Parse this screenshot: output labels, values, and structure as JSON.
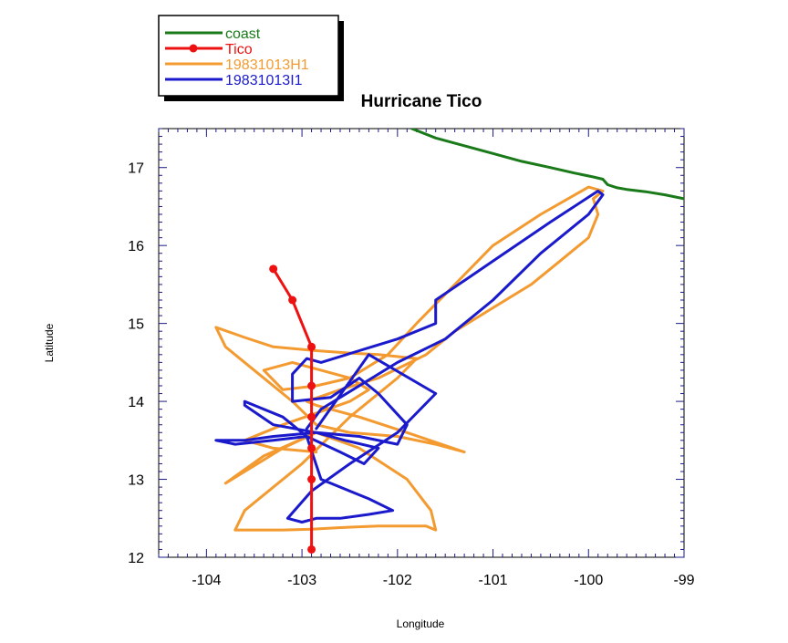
{
  "chart_data": {
    "type": "line",
    "title": "Hurricane Tico",
    "xlabel": "Longitude",
    "ylabel": "Latitude",
    "xlim": [
      -104.5,
      -99
    ],
    "ylim": [
      12,
      17.5
    ],
    "xticks": [
      -104,
      -103,
      -102,
      -101,
      -100,
      -99
    ],
    "yticks": [
      12,
      13,
      14,
      15,
      16,
      17
    ],
    "x_tick_labels": [
      "-104",
      "-103",
      "-102",
      "-101",
      "-100",
      "-99"
    ],
    "y_tick_labels": [
      "12",
      "13",
      "14",
      "15",
      "16",
      "17"
    ],
    "grid": false,
    "legend_position": "top-left, outside plot",
    "series": [
      {
        "name": "coast",
        "color": "#1a7a1a",
        "marker": "none",
        "x": [
          -101.85,
          -101.6,
          -101.3,
          -101.0,
          -100.7,
          -100.4,
          -100.15,
          -99.95,
          -99.85,
          -99.8,
          -99.7,
          -99.6,
          -99.4,
          -99.2,
          -99.0
        ],
        "y": [
          17.5,
          17.38,
          17.28,
          17.18,
          17.08,
          17.0,
          16.93,
          16.88,
          16.85,
          16.78,
          16.74,
          16.72,
          16.69,
          16.65,
          16.6
        ]
      },
      {
        "name": "Tico",
        "color": "#ee1111",
        "marker": "circle",
        "x": [
          -103.3,
          -103.1,
          -102.9,
          -102.9,
          -102.9,
          -102.9,
          -102.9,
          -102.9
        ],
        "y": [
          15.7,
          15.3,
          14.7,
          14.2,
          13.8,
          13.4,
          13.0,
          12.1
        ]
      },
      {
        "name": "19831013H1",
        "color": "#f39a30",
        "marker": "none",
        "x": [
          -102.85,
          -103.4,
          -103.8,
          -103.6,
          -103.2,
          -102.85,
          -102.4,
          -101.9,
          -101.65,
          -101.6,
          -101.7,
          -102.2,
          -102.6,
          -102.9,
          -103.2,
          -103.5,
          -103.7,
          -103.6,
          -103.0,
          -102.5,
          -102.0,
          -101.8,
          -102.2,
          -102.5,
          -102.85,
          -103.3,
          -103.6,
          -103.9,
          -103.8,
          -103.5,
          -103.1,
          -102.85,
          -102.5,
          -102.0,
          -101.6,
          -101.3,
          -101.9,
          -102.4,
          -102.85,
          -102.95,
          -102.6,
          -102.2,
          -101.7,
          -101.4,
          -101.0,
          -100.6,
          -100.3,
          -100.0,
          -99.9,
          -99.95,
          -99.85,
          -100.0,
          -100.5,
          -101.0,
          -101.4,
          -101.8,
          -102.1,
          -102.5,
          -102.85,
          -103.2,
          -103.4,
          -103.1,
          -102.8,
          -102.5,
          -102.3,
          -102.5,
          -102.85,
          -103.2,
          -103.6,
          -103.3,
          -102.85
        ],
        "y": [
          13.6,
          13.3,
          12.95,
          13.1,
          13.4,
          13.6,
          13.4,
          13.0,
          12.6,
          12.35,
          12.4,
          12.4,
          12.38,
          12.36,
          12.35,
          12.35,
          12.35,
          12.6,
          13.2,
          13.8,
          14.3,
          14.55,
          14.6,
          14.62,
          14.65,
          14.7,
          14.82,
          14.95,
          14.7,
          14.4,
          14.0,
          13.7,
          13.6,
          13.55,
          13.45,
          13.35,
          13.6,
          13.8,
          13.95,
          14.0,
          14.15,
          14.3,
          14.6,
          14.9,
          15.2,
          15.5,
          15.8,
          16.1,
          16.4,
          16.6,
          16.7,
          16.75,
          16.4,
          16.0,
          15.5,
          15.0,
          14.6,
          14.3,
          14.2,
          14.15,
          14.4,
          14.5,
          14.4,
          14.3,
          14.15,
          14.0,
          13.85,
          13.7,
          13.5,
          13.4,
          13.35
        ]
      },
      {
        "name": "19831013I1",
        "color": "#1a1acc",
        "marker": "none",
        "x": [
          -102.95,
          -102.8,
          -102.0,
          -101.5,
          -101.0,
          -100.5,
          -100.0,
          -99.85,
          -99.9,
          -100.4,
          -101.0,
          -101.6,
          -101.6,
          -102.0,
          -102.4,
          -102.8,
          -102.95,
          -103.1,
          -103.1,
          -102.7,
          -102.4,
          -102.2,
          -101.9,
          -102.0,
          -102.4,
          -102.85,
          -103.3,
          -103.6,
          -103.9,
          -103.7,
          -103.3,
          -102.95,
          -102.6,
          -102.35,
          -102.2,
          -102.55,
          -102.85,
          -103.3,
          -103.6,
          -103.6,
          -103.2,
          -102.95,
          -102.8,
          -102.3,
          -102.05,
          -102.3,
          -102.6,
          -102.85,
          -103.0,
          -103.15,
          -102.9,
          -102.5,
          -102.0,
          -101.6,
          -102.3,
          -102.85
        ],
        "y": [
          13.65,
          13.9,
          14.5,
          14.8,
          15.3,
          15.9,
          16.4,
          16.65,
          16.7,
          16.3,
          15.8,
          15.3,
          15.0,
          14.8,
          14.65,
          14.5,
          14.55,
          14.35,
          14.0,
          14.05,
          14.3,
          14.1,
          13.7,
          13.45,
          13.55,
          13.6,
          13.55,
          13.5,
          13.5,
          13.45,
          13.5,
          13.55,
          13.35,
          13.2,
          13.4,
          13.5,
          13.6,
          13.7,
          13.95,
          14.0,
          13.8,
          13.55,
          13.0,
          12.75,
          12.6,
          12.55,
          12.5,
          12.5,
          12.45,
          12.5,
          12.85,
          13.2,
          13.6,
          14.1,
          14.6,
          13.65
        ]
      }
    ]
  }
}
